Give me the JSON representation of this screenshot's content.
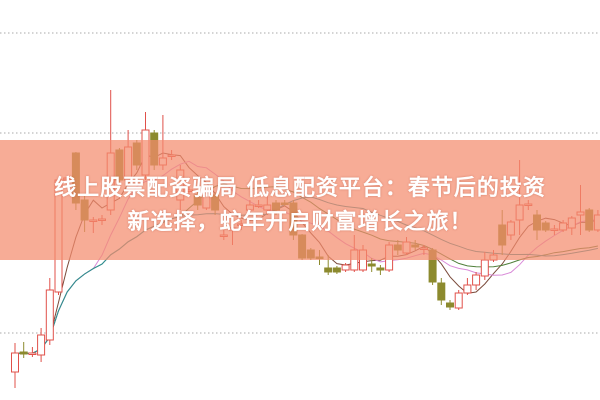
{
  "title": {
    "line1": "线上股票配资骗局 低息配资平台：春节后的投资",
    "line2": "新选择，蛇年开启财富增长之旅！"
  },
  "colors": {
    "up": "#e0504a",
    "down": "#8c8a2e",
    "banner": "#f48c6e",
    "ma_colors": [
      "#7a4a3a",
      "#d98ad8",
      "#4f7f3a",
      "#2f8f9a"
    ]
  },
  "chart_data": {
    "type": "candlestick",
    "title": "",
    "xlabel": "",
    "ylabel": "",
    "ylim": [
      0,
      40
    ],
    "grid": true,
    "gridlines": [
      36.7,
      26.7,
      6.7
    ],
    "moving_averages": [
      5,
      10,
      20,
      30
    ],
    "ohlc_fields": [
      "open",
      "close",
      "high",
      "low"
    ],
    "candles": [
      [
        2.8,
        4.7,
        5.7,
        1.2
      ],
      [
        4.8,
        4.6,
        5.8,
        4.2
      ],
      [
        4.6,
        4.7,
        5.3,
        4.3
      ],
      [
        4.5,
        6.5,
        7.2,
        3.8
      ],
      [
        6.0,
        11.0,
        12.2,
        5.5
      ],
      [
        10.8,
        22.0,
        22.0,
        10.5
      ],
      [
        22.0,
        22.2,
        22.5,
        21.8
      ],
      [
        24.7,
        19.7,
        24.8,
        19.0
      ],
      [
        20.0,
        18.0,
        20.5,
        16.8
      ],
      [
        18.0,
        18.0,
        18.3,
        16.7
      ],
      [
        18.0,
        18.1,
        18.5,
        17.5
      ],
      [
        19.0,
        24.7,
        31.0,
        18.5
      ],
      [
        25.0,
        22.0,
        25.2,
        21.5
      ],
      [
        22.0,
        25.3,
        27.0,
        22.0
      ],
      [
        25.7,
        23.5,
        26.0,
        23.0
      ],
      [
        22.5,
        27.0,
        28.8,
        22.0
      ],
      [
        26.7,
        23.5,
        27.0,
        23.0
      ],
      [
        23.5,
        24.2,
        28.5,
        23.0
      ],
      [
        24.5,
        24.5,
        25.0,
        24.0
      ],
      [
        20.0,
        23.0,
        23.5,
        19.0
      ],
      [
        21.0,
        21.0,
        21.5,
        20.5
      ],
      [
        20.5,
        19.5,
        20.8,
        19.0
      ],
      [
        19.2,
        20.7,
        21.0,
        19.0
      ],
      [
        20.5,
        19.0,
        20.8,
        18.5
      ],
      [
        16.5,
        16.5,
        17.0,
        16.0
      ],
      [
        17.0,
        17.2,
        17.5,
        15.5
      ],
      [
        17.5,
        17.6,
        18.0,
        17.0
      ],
      [
        19.0,
        19.5,
        20.0,
        18.5
      ],
      [
        19.5,
        19.5,
        20.0,
        19.2
      ],
      [
        19.0,
        19.5,
        20.5,
        18.5
      ],
      [
        19.7,
        19.0,
        20.0,
        18.5
      ],
      [
        19.7,
        19.6,
        20.0,
        19.4
      ],
      [
        19.7,
        16.5,
        20.0,
        16.0
      ],
      [
        16.5,
        14.2,
        16.6,
        14.0
      ],
      [
        15.0,
        14.2,
        15.2,
        14.0
      ],
      [
        14.3,
        14.2,
        15.0,
        13.5
      ],
      [
        13.2,
        12.8,
        14.5,
        12.5
      ],
      [
        13.2,
        12.8,
        13.4,
        12.6
      ],
      [
        13.0,
        13.5,
        13.7,
        12.8
      ],
      [
        13.0,
        15.0,
        16.5,
        12.8
      ],
      [
        13.0,
        15.0,
        15.5,
        12.8
      ],
      [
        13.6,
        13.4,
        14.2,
        12.8
      ],
      [
        13.2,
        13.0,
        13.5,
        12.5
      ],
      [
        13.0,
        15.5,
        15.8,
        12.8
      ],
      [
        15.5,
        15.0,
        16.0,
        14.5
      ],
      [
        14.7,
        15.8,
        16.3,
        14.5
      ],
      [
        15.5,
        15.3,
        16.0,
        15.0
      ],
      [
        15.2,
        15.2,
        15.5,
        14.5
      ],
      [
        15.0,
        11.8,
        15.2,
        11.5
      ],
      [
        11.7,
        10.0,
        12.2,
        9.5
      ],
      [
        9.7,
        9.3,
        10.0,
        9.0
      ],
      [
        9.2,
        10.7,
        11.0,
        9.0
      ],
      [
        10.7,
        11.5,
        12.2,
        10.5
      ],
      [
        11.5,
        12.5,
        12.8,
        11.0
      ],
      [
        12.4,
        14.0,
        14.8,
        12.0
      ],
      [
        14.0,
        14.5,
        15.0,
        13.8
      ],
      [
        17.5,
        15.5,
        19.0,
        14.5
      ],
      [
        16.5,
        17.8,
        18.0,
        16.0
      ],
      [
        18.0,
        19.5,
        24.0,
        16.5
      ],
      [
        19.5,
        19.6,
        20.0,
        19.0
      ],
      [
        18.5,
        17.0,
        19.0,
        16.0
      ],
      [
        17.7,
        17.0,
        17.9,
        16.8
      ],
      [
        17.0,
        17.1,
        17.5,
        16.5
      ],
      [
        17.0,
        17.7,
        18.0,
        16.8
      ],
      [
        17.2,
        18.2,
        18.4,
        16.5
      ],
      [
        18.5,
        18.8,
        21.5,
        16.5
      ],
      [
        19.0,
        17.0,
        19.2,
        16.8
      ],
      [
        17.0,
        18.5,
        19.0,
        16.8
      ]
    ]
  }
}
